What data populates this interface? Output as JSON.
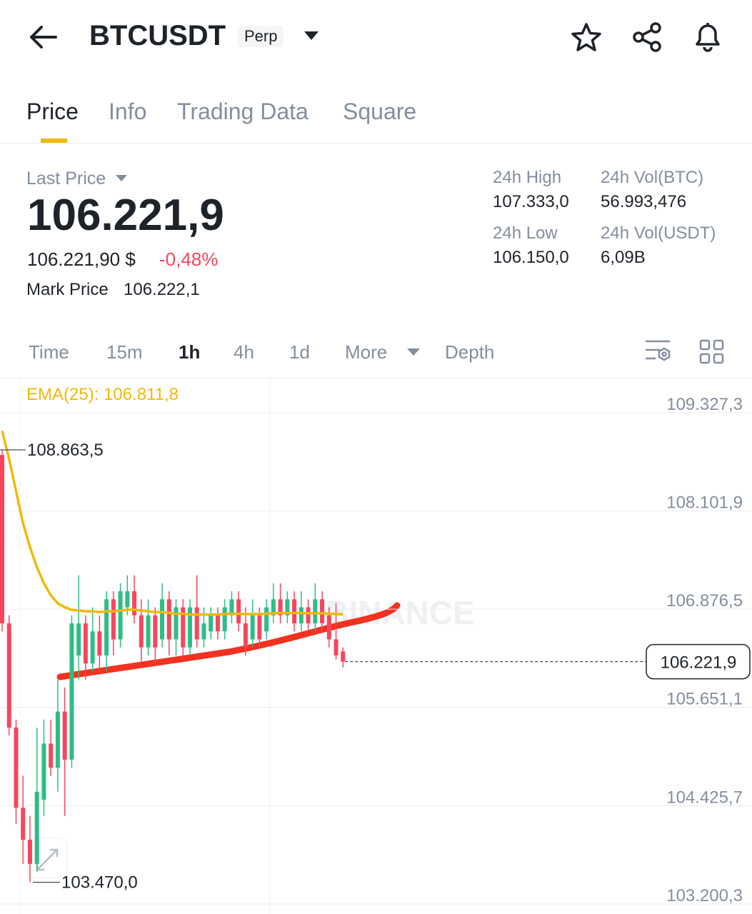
{
  "header": {
    "symbol": "BTCUSDT",
    "badge": "Perp"
  },
  "tabs": [
    "Price",
    "Info",
    "Trading Data",
    "Square"
  ],
  "stats": {
    "last_price_label": "Last Price",
    "last_price": "106.221,9",
    "usd_price": "106.221,90 $",
    "change": "-0,48%",
    "mark_price_label": "Mark Price",
    "mark_price": "106.222,1",
    "high_label": "24h High",
    "high": "107.333,0",
    "vol_btc_label": "24h Vol(BTC)",
    "vol_btc": "56.993,476",
    "low_label": "24h Low",
    "low": "106.150,0",
    "vol_usdt_label": "24h Vol(USDT)",
    "vol_usdt": "6,09B"
  },
  "intervals": [
    "Time",
    "15m",
    "1h",
    "4h",
    "1d",
    "More",
    "Depth"
  ],
  "chart_data": {
    "type": "candlestick",
    "ema_label": "EMA(25): 106.811,8",
    "watermark": "BINANCE",
    "ylim": [
      103182,
      109772
    ],
    "yticks": [
      {
        "value": 109327.3,
        "label": "109.327,3"
      },
      {
        "value": 108101.9,
        "label": "108.101,9"
      },
      {
        "value": 106876.5,
        "label": "106.876,5"
      },
      {
        "value": 105651.1,
        "label": "105.651,1"
      },
      {
        "value": 104425.7,
        "label": "104.425,7"
      },
      {
        "value": 103200.3,
        "label": "103.200,3"
      }
    ],
    "high_marker": {
      "value": 108863.5,
      "label": "108.863,5"
    },
    "low_marker": {
      "value": 103470,
      "label": "103.470,0"
    },
    "price_marker": {
      "value": 106221.9,
      "label": "106.221,9"
    },
    "up_color": "#2ebd85",
    "down_color": "#f6465d",
    "ema_color": "#f0b90b",
    "open": [
      108800,
      106700,
      105400,
      104400,
      104000,
      103700,
      104500,
      105200,
      104900,
      105600,
      105000,
      106300,
      106700,
      106200,
      106600,
      106300,
      107000,
      106500,
      106900,
      107100,
      106800,
      106400,
      106800,
      106500,
      107000,
      106500,
      106900,
      106400,
      106900,
      106500,
      106600,
      106800,
      106600,
      106800,
      107000,
      106700,
      106500,
      106800,
      106600,
      106800,
      107000,
      106800,
      107000,
      106700,
      106900,
      106700,
      107000,
      106800,
      106500,
      106350
    ],
    "high": [
      108863.5,
      106800,
      105500,
      104800,
      104300,
      105400,
      105500,
      105500,
      106000,
      105900,
      106800,
      107300,
      106800,
      106900,
      106800,
      107100,
      107100,
      107200,
      107300,
      107300,
      107000,
      107000,
      106900,
      107200,
      107100,
      107000,
      107000,
      107000,
      107300,
      106900,
      106900,
      106900,
      107000,
      107100,
      107100,
      106900,
      107000,
      106900,
      107000,
      107200,
      107200,
      107100,
      107100,
      107100,
      107000,
      107200,
      107100,
      106900,
      106950,
      106400
    ],
    "low": [
      106600,
      105300,
      104200,
      103700,
      103470,
      103600,
      104300,
      104800,
      104600,
      104300,
      104900,
      106000,
      106000,
      106100,
      106100,
      106100,
      106300,
      106400,
      106800,
      106700,
      106200,
      106300,
      106200,
      106400,
      106300,
      106300,
      106300,
      106300,
      106400,
      106400,
      106500,
      106500,
      106500,
      106700,
      106600,
      106300,
      106400,
      106400,
      106500,
      106700,
      106700,
      106700,
      106600,
      106600,
      106600,
      106600,
      106600,
      106400,
      106250,
      106150
    ],
    "close": [
      106700,
      105400,
      104400,
      104000,
      103700,
      104600,
      105200,
      104900,
      105600,
      105000,
      106700,
      106700,
      106200,
      106600,
      106300,
      107000,
      106500,
      107100,
      107100,
      106800,
      106400,
      106800,
      106400,
      107000,
      106500,
      106900,
      106400,
      106900,
      106500,
      106700,
      106800,
      106600,
      106900,
      107000,
      106700,
      106400,
      106800,
      106500,
      106900,
      107000,
      106800,
      107000,
      106700,
      106900,
      106700,
      107000,
      106700,
      106500,
      106300,
      106221.9
    ],
    "ema": [
      109100,
      108750,
      108350,
      107950,
      107650,
      107400,
      107200,
      107050,
      106950,
      106900,
      106870,
      106860,
      106850,
      106850,
      106840,
      106850,
      106850,
      106860,
      106870,
      106870,
      106860,
      106850,
      106840,
      106840,
      106830,
      106820,
      106820,
      106810,
      106810,
      106810,
      106810,
      106810,
      106815,
      106820,
      106820,
      106815,
      106815,
      106815,
      106820,
      106825,
      106830,
      106830,
      106830,
      106830,
      106825,
      106825,
      106825,
      106820,
      106815,
      106811.8
    ]
  }
}
